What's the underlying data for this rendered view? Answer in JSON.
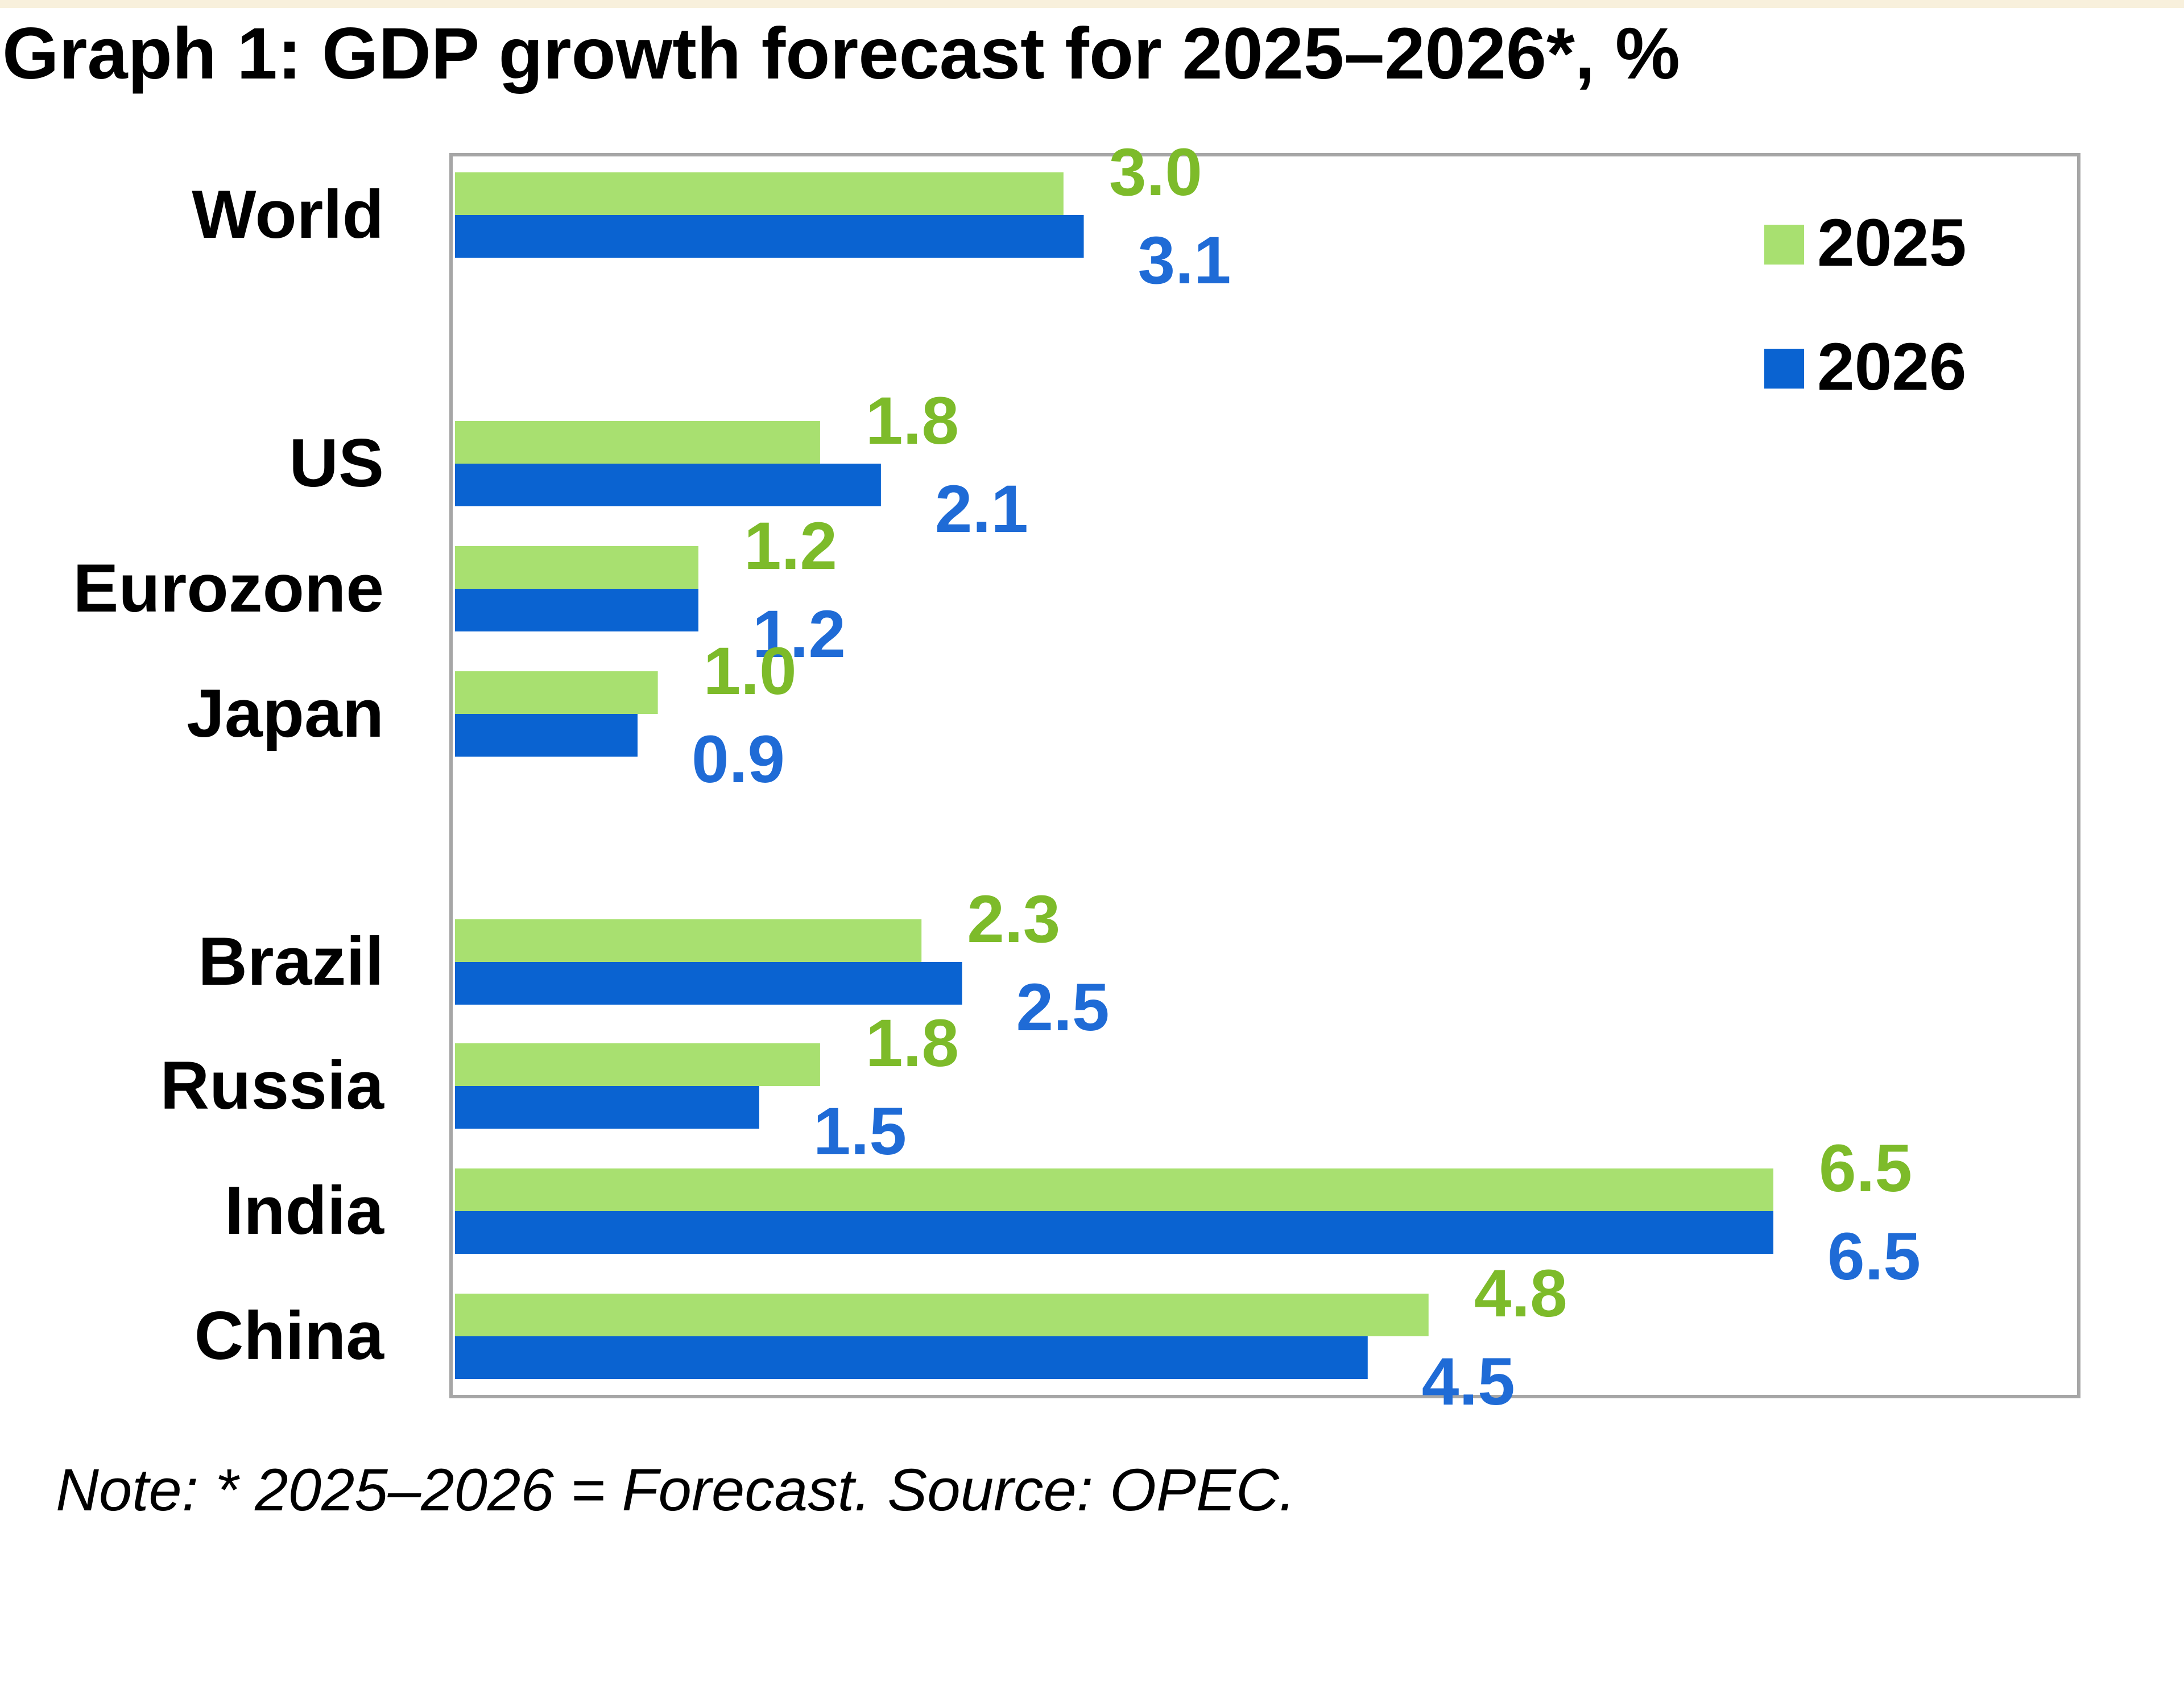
{
  "colors": {
    "series_2025": "#a8e070",
    "series_2026": "#0a63d1",
    "label_2025": "#7dbb2a",
    "label_2026": "#1f6bd6",
    "frame": "#a6a6a6",
    "background_strip": "#f8f0dc"
  },
  "chart_data": {
    "type": "bar",
    "orientation": "horizontal",
    "title": "Graph 1: GDP growth forecast for 2025–2026*, %",
    "note": "Note: * 2025–2026 = Forecast. Source: OPEC.",
    "categories": [
      "World",
      "US",
      "Eurozone",
      "Japan",
      "Brazil",
      "Russia",
      "India",
      "China"
    ],
    "series": [
      {
        "name": "2025",
        "values": [
          3.0,
          1.8,
          1.2,
          1.0,
          2.3,
          1.8,
          6.5,
          4.8
        ],
        "labels": [
          "3.0",
          "1.8",
          "1.2",
          "1.0",
          "2.3",
          "1.8",
          "6.5",
          "4.8"
        ]
      },
      {
        "name": "2026",
        "values": [
          3.1,
          2.1,
          1.2,
          0.9,
          2.5,
          1.5,
          6.5,
          4.5
        ],
        "labels": [
          "3.1",
          "2.1",
          "1.2",
          "0.9",
          "2.5",
          "1.5",
          "6.5",
          "4.5"
        ]
      }
    ],
    "xlim": [
      0,
      8
    ],
    "grid": false,
    "legend": "top-right",
    "xlabel": "",
    "ylabel": ""
  }
}
